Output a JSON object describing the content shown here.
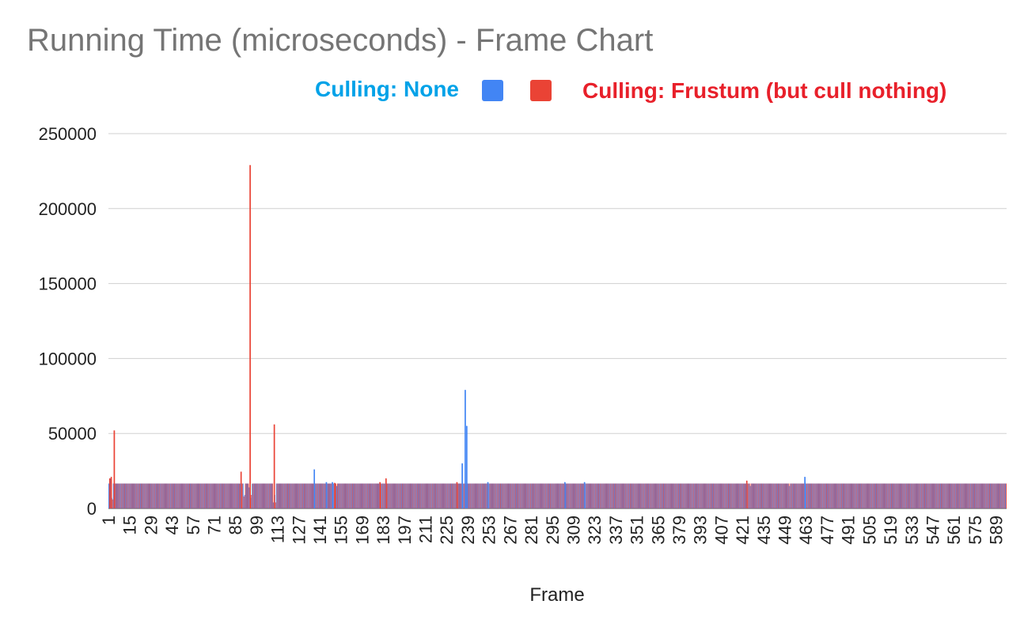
{
  "chart_data": {
    "type": "bar",
    "title": "Running Time (microseconds) - Frame Chart",
    "xlabel": "Frame",
    "ylabel": "",
    "ylim": [
      0,
      250000
    ],
    "y_ticks": [
      0,
      50000,
      100000,
      150000,
      200000,
      250000
    ],
    "y_tick_labels": [
      "0",
      "50000",
      "100000",
      "150000",
      "200000",
      "250000"
    ],
    "x_range": [
      1,
      595
    ],
    "x_tick_labels": [
      "1",
      "15",
      "29",
      "43",
      "57",
      "71",
      "85",
      "99",
      "113",
      "127",
      "141",
      "155",
      "169",
      "183",
      "197",
      "211",
      "225",
      "239",
      "253",
      "267",
      "281",
      "295",
      "309",
      "323",
      "337",
      "351",
      "365",
      "379",
      "393",
      "407",
      "421",
      "435",
      "449",
      "463",
      "477",
      "491",
      "505",
      "519",
      "533",
      "547",
      "561",
      "575",
      "589"
    ],
    "grid": true,
    "legend_position": "top",
    "baseline_value": 16600,
    "series": [
      {
        "name": "Culling: None",
        "color": "#4285f4",
        "label_color": "#00a2e8",
        "spikes": [
          {
            "frame": 2,
            "value": 20000
          },
          {
            "frame": 3,
            "value": 7000
          },
          {
            "frame": 91,
            "value": 9000
          },
          {
            "frame": 94,
            "value": 14000
          },
          {
            "frame": 95,
            "value": 7000
          },
          {
            "frame": 96,
            "value": 16500
          },
          {
            "frame": 110,
            "value": 4000
          },
          {
            "frame": 111,
            "value": 9000
          },
          {
            "frame": 137,
            "value": 26000
          },
          {
            "frame": 145,
            "value": 17500
          },
          {
            "frame": 149,
            "value": 17500
          },
          {
            "frame": 152,
            "value": 15000
          },
          {
            "frame": 235,
            "value": 30000
          },
          {
            "frame": 237,
            "value": 79000
          },
          {
            "frame": 238,
            "value": 55000
          },
          {
            "frame": 252,
            "value": 17500
          },
          {
            "frame": 303,
            "value": 17500
          },
          {
            "frame": 316,
            "value": 17500
          },
          {
            "frame": 426,
            "value": 15000
          },
          {
            "frame": 452,
            "value": 15000
          },
          {
            "frame": 462,
            "value": 21000
          }
        ]
      },
      {
        "name": "Culling: Frustum (but cull nothing)",
        "color": "#ea4335",
        "label_color": "#e8202a",
        "spikes": [
          {
            "frame": 1,
            "value": 20000
          },
          {
            "frame": 2,
            "value": 21000
          },
          {
            "frame": 3,
            "value": 6000
          },
          {
            "frame": 4,
            "value": 52000
          },
          {
            "frame": 88,
            "value": 24500
          },
          {
            "frame": 90,
            "value": 8000
          },
          {
            "frame": 94,
            "value": 229000
          },
          {
            "frame": 95,
            "value": 9000
          },
          {
            "frame": 110,
            "value": 56000
          },
          {
            "frame": 111,
            "value": 4000
          },
          {
            "frame": 150,
            "value": 17000
          },
          {
            "frame": 180,
            "value": 17500
          },
          {
            "frame": 184,
            "value": 20000
          },
          {
            "frame": 231,
            "value": 17500
          },
          {
            "frame": 423,
            "value": 18500
          }
        ]
      }
    ]
  },
  "legend": {
    "items": [
      {
        "label": "Culling: None",
        "swatch_color": "#4285f4",
        "text_color": "#00a2e8"
      },
      {
        "label": "Culling: Frustum (but cull nothing)",
        "swatch_color": "#ea4335",
        "text_color": "#e8202a"
      }
    ]
  }
}
